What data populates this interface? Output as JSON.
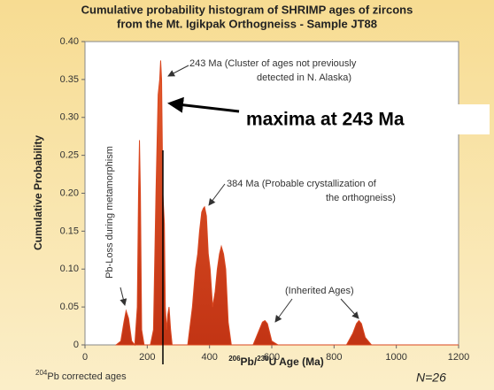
{
  "chart_data": {
    "type": "area",
    "title": [
      "Cumulative probability histogram of SHRIMP ages of zircons",
      "from the Mt. Igikpak Orthogneiss - Sample JT88"
    ],
    "y_label": "Cumulative Probability",
    "x_label": {
      "sup1": "206",
      "t1": "Pb/",
      "sup2": "238",
      "t2": "U Age (Ma)"
    },
    "footnote": {
      "sup": "204",
      "text": "Pb corrected ages"
    },
    "n_label": "N=26",
    "annotations": {
      "peak_243": [
        "243 Ma (Cluster of ages not previously",
        "detected in N. Alaska)"
      ],
      "maxima": "maxima at 243 Ma",
      "peak_384": [
        "384 Ma (Probable crystallization of",
        "the orthogneiss)"
      ],
      "inherited": "(Inherited Ages)",
      "pb_loss": "Pb-Loss during metamorphism"
    },
    "color": "#d9461f",
    "x": [
      100,
      115,
      125,
      132,
      140,
      150,
      160,
      168,
      172,
      175,
      178,
      182,
      190,
      200,
      210,
      220,
      228,
      235,
      240,
      243,
      246,
      250,
      255,
      258,
      262,
      266,
      270,
      275,
      280,
      290,
      330,
      345,
      355,
      362,
      368,
      375,
      380,
      384,
      390,
      396,
      402,
      410,
      418,
      425,
      432,
      438,
      445,
      452,
      460,
      470,
      540,
      560,
      570,
      578,
      586,
      600,
      620,
      840,
      860,
      872,
      880,
      888,
      900,
      920,
      1200
    ],
    "values": [
      0,
      0.005,
      0.03,
      0.045,
      0.035,
      0.005,
      0,
      0.05,
      0.2,
      0.27,
      0.2,
      0.02,
      0,
      0,
      0,
      0.02,
      0.2,
      0.33,
      0.35,
      0.375,
      0.35,
      0.2,
      0.16,
      0.05,
      0.02,
      0.04,
      0.05,
      0.02,
      0,
      0,
      0,
      0.05,
      0.1,
      0.12,
      0.15,
      0.175,
      0.18,
      0.182,
      0.17,
      0.12,
      0.1,
      0.05,
      0.07,
      0.1,
      0.12,
      0.13,
      0.12,
      0.1,
      0.03,
      0,
      0,
      0.02,
      0.03,
      0.032,
      0.028,
      0.005,
      0,
      0,
      0.015,
      0.028,
      0.032,
      0.028,
      0.01,
      0,
      0
    ],
    "xlim": [
      0,
      1200
    ],
    "xticks": [
      0,
      200,
      400,
      600,
      800,
      1000,
      1200
    ],
    "ylim": [
      0,
      0.4
    ],
    "yticks": [
      0,
      0.05,
      {
        "value": 0.1,
        "label": "0.10"
      },
      0.15,
      {
        "value": 0.2,
        "label": "0.20"
      },
      0.25,
      {
        "value": 0.3,
        "label": "0.30"
      },
      0.35,
      {
        "value": 0.4,
        "label": "0.40"
      }
    ],
    "grid": false
  }
}
